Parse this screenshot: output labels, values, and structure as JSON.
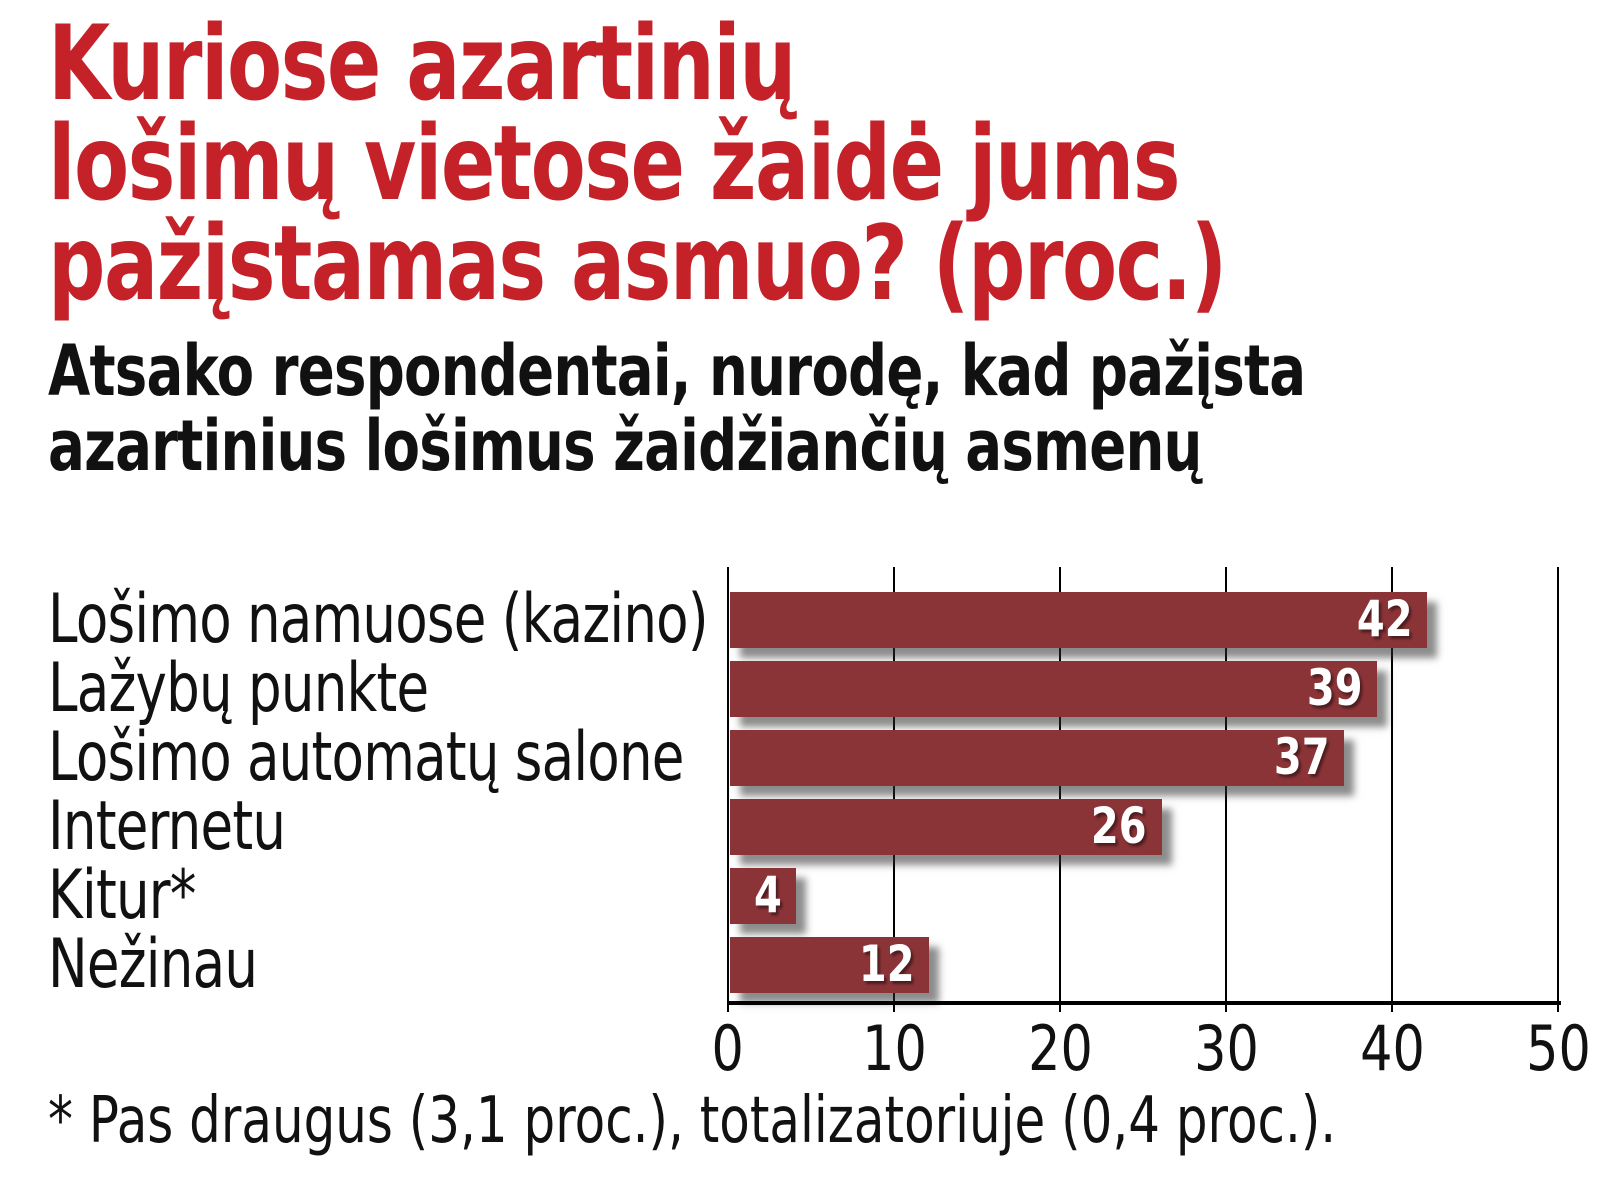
{
  "title": {
    "lines": [
      "Kuriose azartinių",
      "lošimų vietose žaidė jums",
      "pažįstamas asmuo? (proc.)"
    ]
  },
  "subtitle": {
    "lines": [
      "Atsako respondentai, nurodę, kad pažįsta",
      "azartinius lošimus žaidžiančių asmenų"
    ]
  },
  "footnote": "* Pas draugus (3,1 proc.), totalizatoriuje (0,4 proc.).",
  "colors": {
    "title_red": "#c42129",
    "bar_maroon": "#8b3438",
    "text_black": "#111111",
    "value_white": "#ffffff",
    "grid_black": "#000000"
  },
  "chart_data": {
    "type": "bar",
    "orientation": "horizontal",
    "title": "Kuriose azartinių lošimų vietose žaidė jums pažįstamas asmuo? (proc.)",
    "subtitle": "Atsako respondentai, nurodę, kad pažįsta azartinius lošimus žaidžiančių asmenų",
    "categories": [
      "Lošimo namuose (kazino)",
      "Lažybų punkte",
      "Lošimo automatų salone",
      "Internetu",
      "Kitur*",
      "Nežinau"
    ],
    "values": [
      42,
      39,
      37,
      26,
      4,
      12
    ],
    "x_ticks": [
      "0",
      "10",
      "20",
      "30",
      "40",
      "50"
    ],
    "xlim": [
      0,
      50
    ],
    "xlabel": "",
    "ylabel": "",
    "grid": "vertical",
    "legend": "none",
    "value_labels": "inside-right",
    "footnote": "* Pas draugus (3,1 proc.), totalizatoriuje (0,4 proc.)."
  }
}
